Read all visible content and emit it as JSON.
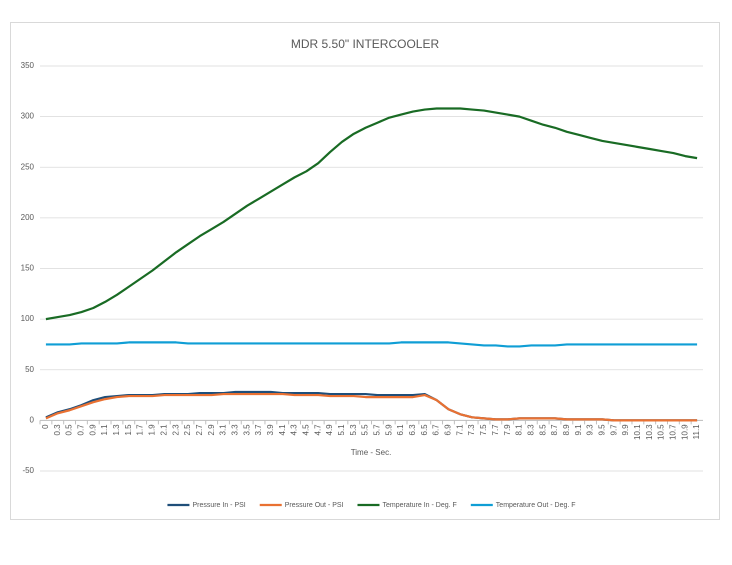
{
  "chart_data": {
    "type": "line",
    "title": "MDR 5.50\" INTERCOOLER",
    "x_label": "Time - Sec.",
    "categories": [
      "0",
      "0.3",
      "0.5",
      "0.7",
      "0.9",
      "1.1",
      "1.3",
      "1.5",
      "1.7",
      "1.9",
      "2.1",
      "2.3",
      "2.5",
      "2.7",
      "2.9",
      "3.1",
      "3.3",
      "3.5",
      "3.7",
      "3.9",
      "4.1",
      "4.3",
      "4.5",
      "4.7",
      "4.9",
      "5.1",
      "5.3",
      "5.5",
      "5.7",
      "5.9",
      "6.1",
      "6.3",
      "6.5",
      "6.7",
      "6.9",
      "7.1",
      "7.3",
      "7.5",
      "7.7",
      "7.9",
      "8.1",
      "8.3",
      "8.5",
      "8.7",
      "8.9",
      "9.1",
      "9.3",
      "9.5",
      "9.7",
      "9.9",
      "10.1",
      "10.3",
      "10.5",
      "10.7",
      "10.9",
      "11.1"
    ],
    "series": [
      {
        "name": "Pressure In - PSI",
        "color": "#1f4e79",
        "values": [
          3,
          8,
          11,
          15,
          20,
          23,
          24,
          25,
          25,
          25,
          26,
          26,
          26,
          27,
          27,
          27,
          28,
          28,
          28,
          28,
          27,
          27,
          27,
          27,
          26,
          26,
          26,
          26,
          25,
          25,
          25,
          25,
          26,
          20,
          11,
          6,
          3,
          2,
          1,
          1,
          2,
          2,
          2,
          2,
          1,
          1,
          1,
          1,
          0,
          0,
          0,
          0,
          0,
          0,
          0,
          0
        ]
      },
      {
        "name": "Pressure Out - PSI",
        "color": "#e97132",
        "values": [
          2,
          7,
          10,
          14,
          18,
          21,
          23,
          24,
          24,
          24,
          25,
          25,
          25,
          25,
          25,
          26,
          26,
          26,
          26,
          26,
          26,
          25,
          25,
          25,
          24,
          24,
          24,
          23,
          23,
          23,
          23,
          23,
          25,
          20,
          11,
          6,
          3,
          2,
          1,
          1,
          2,
          2,
          2,
          2,
          1,
          1,
          1,
          1,
          0,
          0,
          0,
          0,
          0,
          0,
          0,
          0
        ]
      },
      {
        "name": "Temperature In - Deg. F",
        "color": "#196b24",
        "values": [
          100,
          102,
          104,
          107,
          111,
          117,
          124,
          132,
          140,
          148,
          157,
          166,
          174,
          182,
          189,
          196,
          204,
          212,
          219,
          226,
          233,
          240,
          246,
          254,
          265,
          275,
          283,
          289,
          294,
          299,
          302,
          305,
          307,
          308,
          308,
          308,
          307,
          306,
          304,
          302,
          300,
          296,
          292,
          289,
          285,
          282,
          279,
          276,
          274,
          272,
          270,
          268,
          266,
          264,
          261,
          259
        ]
      },
      {
        "name": "Temperature Out - Deg. F",
        "color": "#0f9ed5",
        "values": [
          75,
          75,
          75,
          76,
          76,
          76,
          76,
          77,
          77,
          77,
          77,
          77,
          76,
          76,
          76,
          76,
          76,
          76,
          76,
          76,
          76,
          76,
          76,
          76,
          76,
          76,
          76,
          76,
          76,
          76,
          77,
          77,
          77,
          77,
          77,
          76,
          75,
          74,
          74,
          73,
          73,
          74,
          74,
          74,
          75,
          75,
          75,
          75,
          75,
          75,
          75,
          75,
          75,
          75,
          75,
          75
        ]
      }
    ],
    "ylim": [
      -50,
      350
    ],
    "yticks": [
      -50,
      0,
      50,
      100,
      150,
      200,
      250,
      300,
      350
    ],
    "grid": true,
    "legend": "bottom"
  }
}
